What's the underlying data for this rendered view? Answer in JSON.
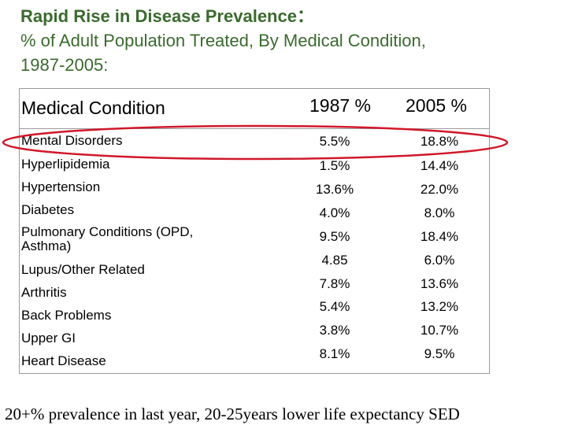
{
  "title": {
    "line1": "Rapid Rise in Disease Prevalence：",
    "line2": "% of Adult Population Treated, By Medical Condition,",
    "line3": "1987-2005:"
  },
  "table": {
    "headers": {
      "condition": "Medical Condition",
      "year1": "1987 %",
      "year2": "2005 %"
    },
    "rows": [
      {
        "condition": "Mental Disorders",
        "v1987": "5.5%",
        "v2005": "18.8%"
      },
      {
        "condition": "Hyperlipidemia",
        "v1987": "1.5%",
        "v2005": "14.4%"
      },
      {
        "condition": "Hypertension",
        "v1987": "13.6%",
        "v2005": "22.0%"
      },
      {
        "condition": "Diabetes",
        "v1987": "4.0%",
        "v2005": "8.0%"
      },
      {
        "condition": "Pulmonary Conditions (OPD,",
        "condition_line2": "Asthma)",
        "v1987": "9.5%",
        "v2005": "18.4%"
      },
      {
        "condition": "Lupus/Other Related",
        "v1987": "4.85",
        "v2005": "6.0%"
      },
      {
        "condition": "Arthritis",
        "v1987": "7.8%",
        "v2005": "13.6%"
      },
      {
        "condition": "Back Problems",
        "v1987": "5.4%",
        "v2005": "13.2%"
      },
      {
        "condition": "Upper GI",
        "v1987": "3.8%",
        "v2005": "10.7%"
      },
      {
        "condition": "Heart Disease",
        "v1987": "8.1%",
        "v2005": "9.5%"
      }
    ]
  },
  "highlight_color": "#d0182a",
  "title_color": "#3a6a2e",
  "footer": {
    "note": "20+% prevalence in last year, 20-25years lower life expectancy SED"
  }
}
